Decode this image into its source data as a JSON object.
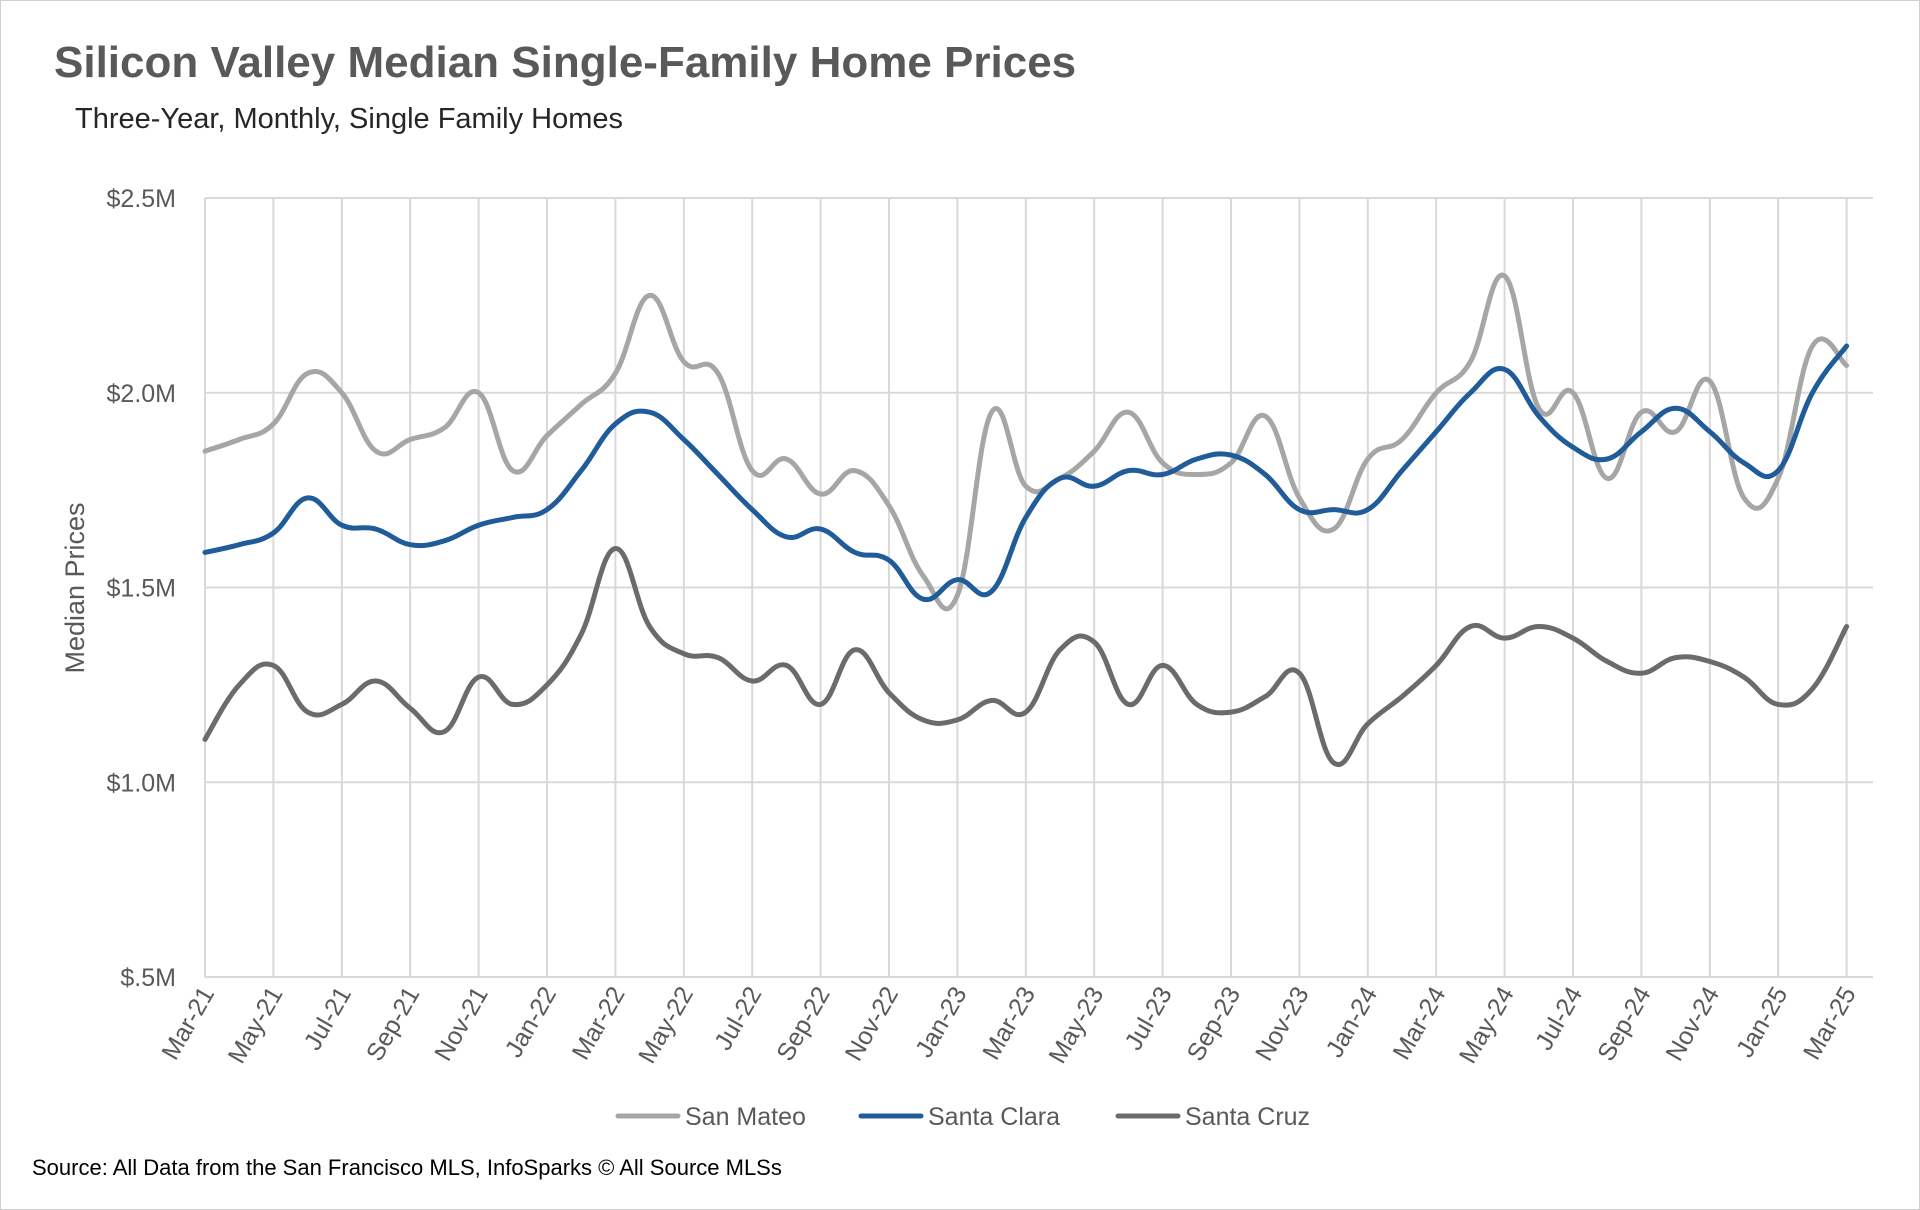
{
  "title": "Silicon Valley Median Single-Family Home Prices",
  "subtitle": "Three-Year, Monthly, Single Family Homes",
  "source": "Source: All Data from the San Francisco MLS, InfoSparks © All Source MLSs",
  "chart_data": {
    "type": "line",
    "ylabel": "Median Prices",
    "ylim": [
      500000,
      2500000
    ],
    "yticks": [
      500000,
      1000000,
      1500000,
      2000000,
      2500000
    ],
    "ytick_labels": [
      "$.5M",
      "$1.0M",
      "$1.5M",
      "$2.0M",
      "$2.5M"
    ],
    "xtick_labels": [
      "Mar-21",
      "May-21",
      "Jul-21",
      "Sep-21",
      "Nov-21",
      "Jan-22",
      "Mar-22",
      "May-22",
      "Jul-22",
      "Sep-22",
      "Nov-22",
      "Jan-23",
      "Mar-23",
      "May-23",
      "Jul-23",
      "Sep-23",
      "Nov-23",
      "Jan-24",
      "Mar-24",
      "May-24",
      "Jul-24",
      "Sep-24",
      "Nov-24",
      "Jan-25",
      "Mar-25"
    ],
    "grid": true,
    "legend_position": "bottom",
    "x": [
      "2021-03",
      "2021-04",
      "2021-05",
      "2021-06",
      "2021-07",
      "2021-08",
      "2021-09",
      "2021-10",
      "2021-11",
      "2021-12",
      "2022-01",
      "2022-02",
      "2022-03",
      "2022-04",
      "2022-05",
      "2022-06",
      "2022-07",
      "2022-08",
      "2022-09",
      "2022-10",
      "2022-11",
      "2022-12",
      "2023-01",
      "2023-02",
      "2023-03",
      "2023-04",
      "2023-05",
      "2023-06",
      "2023-07",
      "2023-08",
      "2023-09",
      "2023-10",
      "2023-11",
      "2023-12",
      "2024-01",
      "2024-02",
      "2024-03",
      "2024-04",
      "2024-05",
      "2024-06",
      "2024-07",
      "2024-08",
      "2024-09",
      "2024-10",
      "2024-11",
      "2024-12",
      "2025-01",
      "2025-02",
      "2025-03"
    ],
    "series": [
      {
        "name": "San Mateo",
        "color": "#a6a6a6",
        "values": [
          1850000,
          1880000,
          1920000,
          2050000,
          2000000,
          1850000,
          1880000,
          1910000,
          2000000,
          1800000,
          1890000,
          1970000,
          2050000,
          2250000,
          2080000,
          2050000,
          1800000,
          1830000,
          1740000,
          1800000,
          1710000,
          1530000,
          1480000,
          1950000,
          1760000,
          1780000,
          1850000,
          1950000,
          1820000,
          1790000,
          1820000,
          1940000,
          1730000,
          1650000,
          1830000,
          1880000,
          2000000,
          2080000,
          2300000,
          1960000,
          2000000,
          1780000,
          1950000,
          1900000,
          2030000,
          1730000,
          1780000,
          2120000,
          2070000
        ]
      },
      {
        "name": "Santa Clara",
        "color": "#1f5c99",
        "values": [
          1590000,
          1610000,
          1640000,
          1730000,
          1660000,
          1650000,
          1610000,
          1620000,
          1660000,
          1680000,
          1700000,
          1800000,
          1920000,
          1950000,
          1880000,
          1790000,
          1700000,
          1630000,
          1650000,
          1590000,
          1570000,
          1470000,
          1520000,
          1490000,
          1680000,
          1780000,
          1760000,
          1800000,
          1790000,
          1830000,
          1840000,
          1790000,
          1700000,
          1700000,
          1700000,
          1800000,
          1900000,
          2000000,
          2060000,
          1940000,
          1860000,
          1830000,
          1900000,
          1960000,
          1900000,
          1820000,
          1800000,
          2000000,
          2120000
        ]
      },
      {
        "name": "Santa Cruz",
        "color": "#6b6b6b",
        "values": [
          1110000,
          1250000,
          1300000,
          1180000,
          1200000,
          1260000,
          1190000,
          1130000,
          1270000,
          1200000,
          1250000,
          1380000,
          1600000,
          1400000,
          1330000,
          1320000,
          1260000,
          1300000,
          1200000,
          1340000,
          1230000,
          1160000,
          1160000,
          1210000,
          1180000,
          1340000,
          1360000,
          1200000,
          1300000,
          1200000,
          1180000,
          1220000,
          1280000,
          1050000,
          1150000,
          1220000,
          1300000,
          1400000,
          1370000,
          1400000,
          1370000,
          1310000,
          1280000,
          1320000,
          1310000,
          1270000,
          1200000,
          1240000,
          1400000
        ]
      }
    ]
  }
}
